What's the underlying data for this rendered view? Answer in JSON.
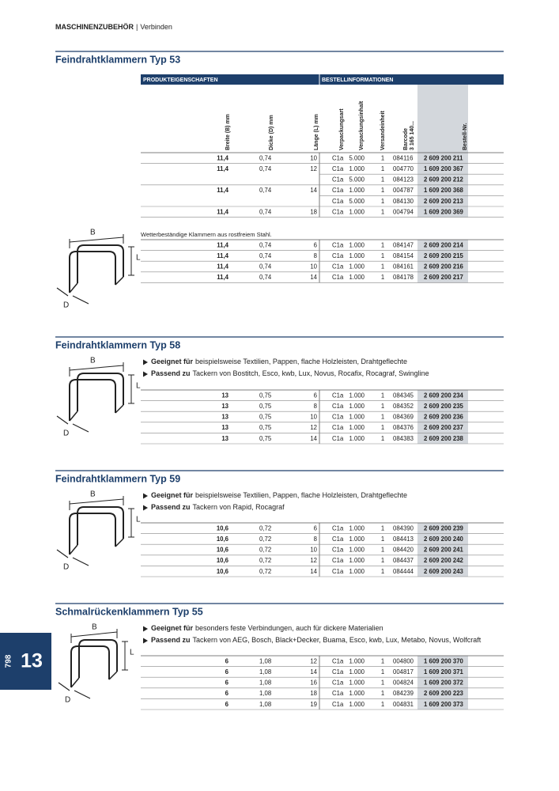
{
  "header": {
    "section": "MASCHINENZUBEHÖR",
    "separator": "|",
    "sub": "Verbinden"
  },
  "columns": {
    "group1": "PRODUKTEIGENSCHAFTEN",
    "group2": "BESTELLINFORMATIONEN",
    "labels": [
      "Breite (B) mm",
      "Dicke (D) mm",
      "Länge (L) mm",
      "Verpackungsart",
      "Verpackungsinhalt",
      "Versandeinheit",
      "Barcode",
      "3 165 140...",
      "Bestell-Nr."
    ]
  },
  "sections": [
    {
      "title": "Feindrahtklammern Typ 53",
      "diagram": {
        "b": "B",
        "l": "L",
        "d": "D"
      },
      "tables": [
        {
          "rows": [
            [
              "11,4",
              "0,74",
              "10",
              "C1a",
              "5.000",
              "1",
              "084116",
              "2 609 200 211"
            ],
            [
              "11,4",
              "0,74",
              "12",
              "C1a",
              "1.000",
              "1",
              "004770",
              "1 609 200 367"
            ],
            [
              null,
              null,
              null,
              "C1a",
              "5.000",
              "1",
              "084123",
              "2 609 200 212"
            ],
            [
              "11,4",
              "0,74",
              "14",
              "C1a",
              "1.000",
              "1",
              "004787",
              "1 609 200 368"
            ],
            [
              null,
              null,
              null,
              "C1a",
              "5.000",
              "1",
              "084130",
              "2 609 200 213"
            ],
            [
              "11,4",
              "0,74",
              "18",
              "C1a",
              "1.000",
              "1",
              "004794",
              "1 609 200 369"
            ]
          ]
        },
        {
          "note": "Wetterbeständige Klammern aus rostfreiem Stahl.",
          "rows": [
            [
              "11,4",
              "0,74",
              "6",
              "C1a",
              "1.000",
              "1",
              "084147",
              "2 609 200 214"
            ],
            [
              "11,4",
              "0,74",
              "8",
              "C1a",
              "1.000",
              "1",
              "084154",
              "2 609 200 215"
            ],
            [
              "11,4",
              "0,74",
              "10",
              "C1a",
              "1.000",
              "1",
              "084161",
              "2 609 200 216"
            ],
            [
              "11,4",
              "0,74",
              "14",
              "C1a",
              "1.000",
              "1",
              "084178",
              "2 609 200 217"
            ]
          ]
        }
      ]
    },
    {
      "title": "Feindrahtklammern Typ 58",
      "diagram": {
        "b": "B",
        "l": "L",
        "d": "D"
      },
      "bullets": [
        {
          "bold": "Geeignet für",
          "text": "beispielsweise Textilien, Pappen, flache Holzleisten, Drahtgeflechte"
        },
        {
          "bold": "Passend zu",
          "text": "Tackern von Bostitch, Esco, kwb, Lux, Novus, Rocafix, Rocagraf, Swingline"
        }
      ],
      "tables": [
        {
          "rows": [
            [
              "13",
              "0,75",
              "6",
              "C1a",
              "1.000",
              "1",
              "084345",
              "2 609 200 234"
            ],
            [
              "13",
              "0,75",
              "8",
              "C1a",
              "1.000",
              "1",
              "084352",
              "2 609 200 235"
            ],
            [
              "13",
              "0,75",
              "10",
              "C1a",
              "1.000",
              "1",
              "084369",
              "2 609 200 236"
            ],
            [
              "13",
              "0,75",
              "12",
              "C1a",
              "1.000",
              "1",
              "084376",
              "2 609 200 237"
            ],
            [
              "13",
              "0,75",
              "14",
              "C1a",
              "1.000",
              "1",
              "084383",
              "2 609 200 238"
            ]
          ]
        }
      ]
    },
    {
      "title": "Feindrahtklammern Typ 59",
      "diagram": {
        "b": "B",
        "l": "L",
        "d": "D"
      },
      "bullets": [
        {
          "bold": "Geeignet für",
          "text": "beispielsweise Textilien, Pappen, flache Holzleisten, Drahtgeflechte"
        },
        {
          "bold": "Passend zu",
          "text": "Tackern von Rapid, Rocagraf"
        }
      ],
      "tables": [
        {
          "rows": [
            [
              "10,6",
              "0,72",
              "6",
              "C1a",
              "1.000",
              "1",
              "084390",
              "2 609 200 239"
            ],
            [
              "10,6",
              "0,72",
              "8",
              "C1a",
              "1.000",
              "1",
              "084413",
              "2 609 200 240"
            ],
            [
              "10,6",
              "0,72",
              "10",
              "C1a",
              "1.000",
              "1",
              "084420",
              "2 609 200 241"
            ],
            [
              "10,6",
              "0,72",
              "12",
              "C1a",
              "1.000",
              "1",
              "084437",
              "2 609 200 242"
            ],
            [
              "10,6",
              "0,72",
              "14",
              "C1a",
              "1.000",
              "1",
              "084444",
              "2 609 200 243"
            ]
          ]
        }
      ]
    },
    {
      "title": "Schmalrückenklammern Typ 55",
      "diagram": {
        "b": "B",
        "l": "L",
        "d": "D"
      },
      "bullets": [
        {
          "bold": "Geeignet für",
          "text": "besonders feste Verbindungen, auch für dickere Materialien"
        },
        {
          "bold": "Passend zu",
          "text": "Tackern von AEG, Bosch, Black+Decker, Buama, Esco, kwb, Lux, Metabo, Novus, Wolfcraft"
        }
      ],
      "tables": [
        {
          "rows": [
            [
              "6",
              "1,08",
              "12",
              "C1a",
              "1.000",
              "1",
              "004800",
              "1 609 200 370"
            ],
            [
              "6",
              "1,08",
              "14",
              "C1a",
              "1.000",
              "1",
              "004817",
              "1 609 200 371"
            ],
            [
              "6",
              "1,08",
              "16",
              "C1a",
              "1.000",
              "1",
              "004824",
              "1 609 200 372"
            ],
            [
              "6",
              "1,08",
              "18",
              "C1a",
              "1.000",
              "1",
              "084239",
              "2 609 200 223"
            ],
            [
              "6",
              "1,08",
              "19",
              "C1a",
              "1.000",
              "1",
              "004831",
              "1 609 200 373"
            ]
          ]
        }
      ]
    }
  ],
  "tab": {
    "page": "798",
    "chapter": "13"
  }
}
